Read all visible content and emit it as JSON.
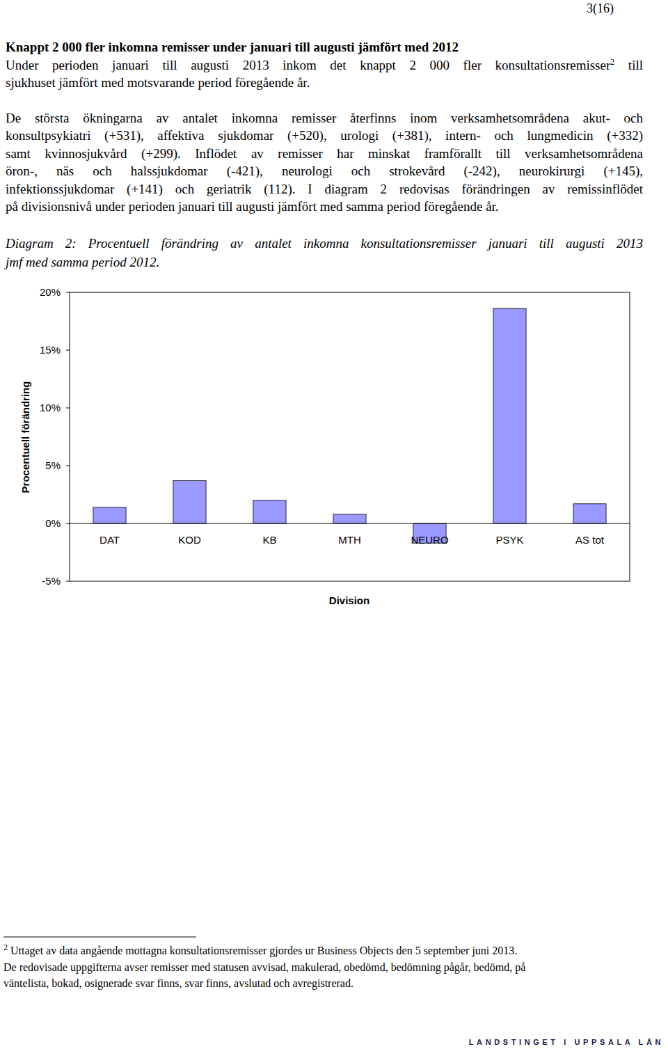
{
  "header": {
    "page_number": "3(16)"
  },
  "body": {
    "title": "Knappt 2 000 fler inkomna remisser under januari till augusti jämfört med 2012",
    "paragraphs": [
      {
        "lines": [
          [
            {
              "text": "Under perioden januari till augusti 2013 inkom det knappt 2 000 fler konsultationsremisser"
            },
            {
              "text": "2",
              "superscript": true
            },
            {
              "text": " till"
            }
          ],
          [
            {
              "text": "sjukhuset jämfört med motsvarande period föregående år."
            }
          ]
        ]
      },
      {
        "lines": [
          [
            {
              "text": "De största ökningarna av antalet inkomna remisser återfinns inom verksamhetsområdena akut- och"
            }
          ],
          [
            {
              "text": "konsultpsykiatri (+531), affektiva sjukdomar (+520), urologi (+381), intern- och lungmedicin (+332)"
            }
          ],
          [
            {
              "text": "samt kvinnosjukvård (+299). Inflödet av remisser har minskat framförallt till verksamhetsområdena"
            }
          ],
          [
            {
              "text": "öron-, näs och halssjukdomar (-421), neurologi och strokevård (-242), neurokirurgi (+145),"
            }
          ],
          [
            {
              "text": "infektionssjukdomar (+141) och geriatrik (112). I diagram 2 redovisas förändringen av remissinflödet"
            }
          ],
          [
            {
              "text": "på divisionsnivå under perioden januari till augusti jämfört med samma period föregående år."
            }
          ]
        ]
      }
    ],
    "caption_lines": [
      "Diagram 2: Procentuell förändring av antalet inkomna konsultationsremisser januari till augusti 2013",
      "jmf med samma period 2012."
    ]
  },
  "chart_data": {
    "type": "bar",
    "x_label": "Division",
    "y_label": "Procentuell förändring",
    "categories": [
      "DAT",
      "KOD",
      "KB",
      "MTH",
      "NEURO",
      "PSYK",
      "AS tot"
    ],
    "values": [
      1.4,
      3.7,
      2.0,
      0.8,
      -1.7,
      18.6,
      1.7
    ],
    "color": "#9999ff",
    "ylim": [
      -5,
      20
    ],
    "yticks": [
      {
        "value": -5,
        "label": "-5%"
      },
      {
        "value": 0,
        "label": "0%"
      },
      {
        "value": 5,
        "label": "5%"
      },
      {
        "value": 10,
        "label": "10%"
      },
      {
        "value": 15,
        "label": "15%"
      },
      {
        "value": 20,
        "label": "20%"
      }
    ],
    "grid": false
  },
  "footnote": {
    "lines": [
      [
        {
          "text": "2",
          "superscript": true
        },
        {
          "text": " Uttaget av data angående mottagna konsultationsremisser gjordes ur Business Objects den 5 september juni 2013."
        }
      ],
      [
        {
          "text": "De redovisade uppgifterna avser remisser med statusen avvisad, makulerad, obedömd, bedömning pågår, bedömd, på"
        }
      ],
      [
        {
          "text": "väntelista, bokad, osignerade svar finns, svar finns, avslutad och avregistrerad."
        }
      ]
    ]
  },
  "footer": {
    "text": "LANDSTINGET I UPPSALA LÄN"
  }
}
